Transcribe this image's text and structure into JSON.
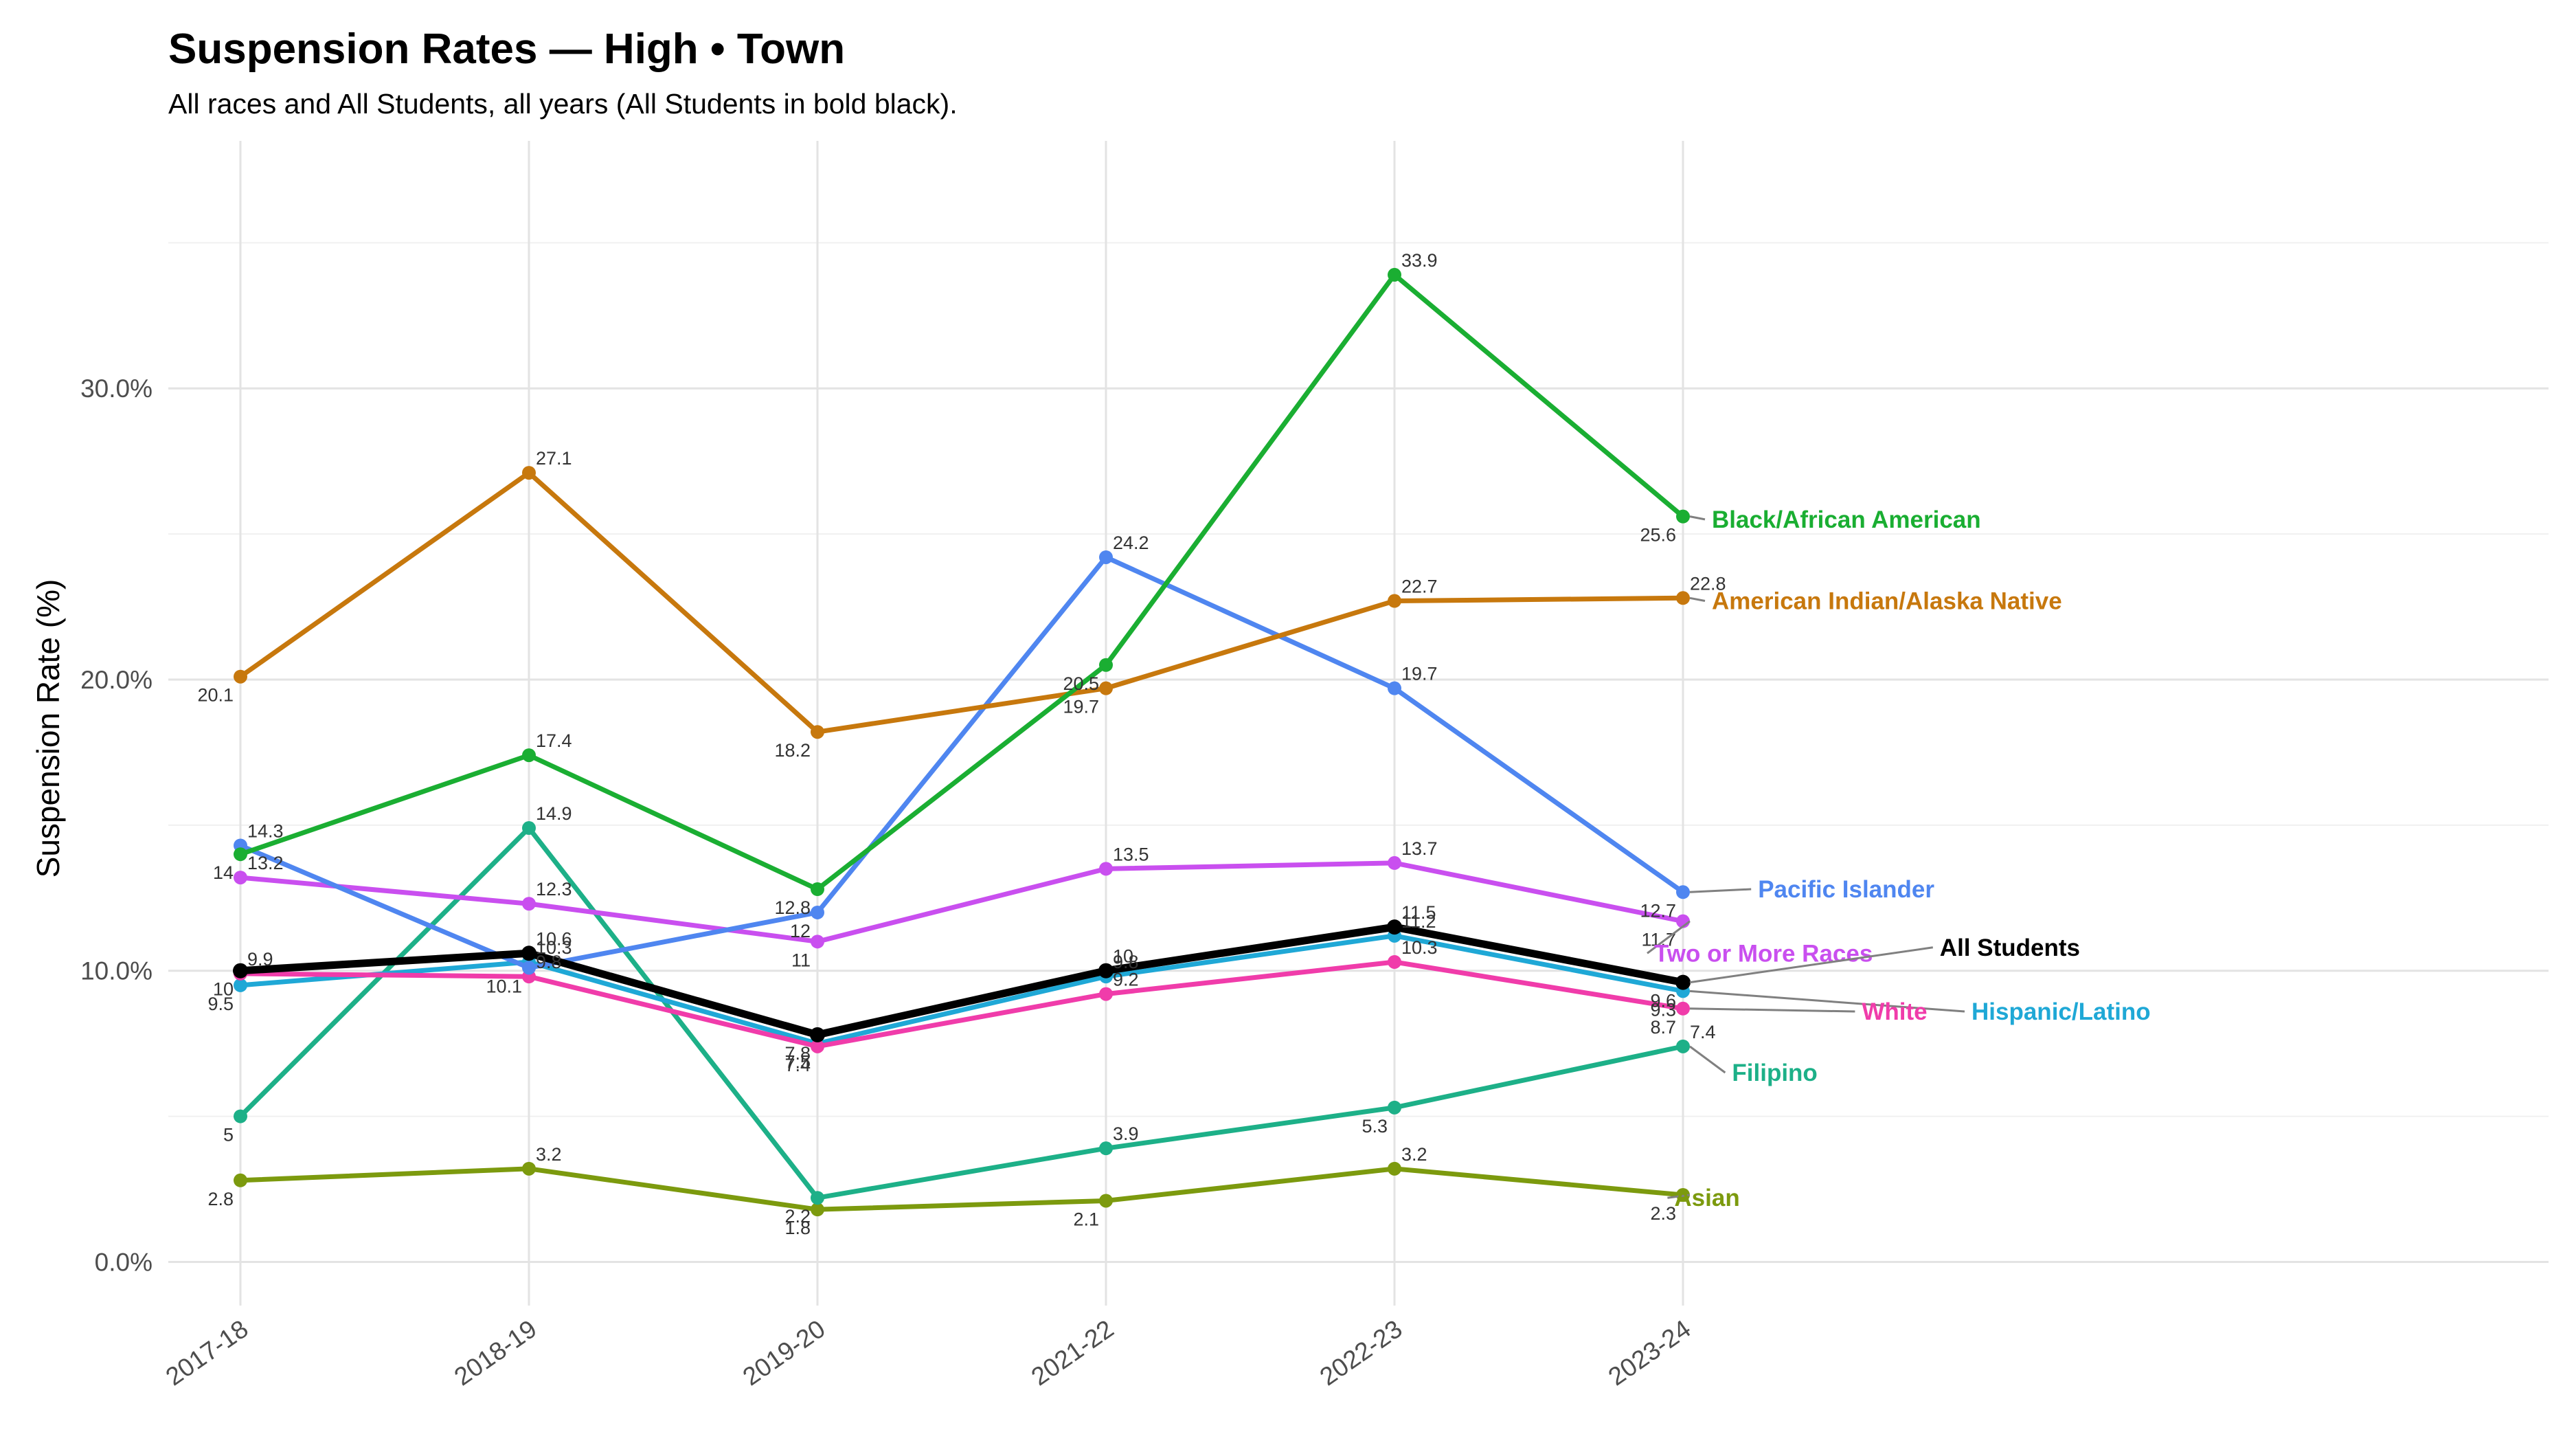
{
  "chart_data": {
    "type": "line",
    "title": "Suspension Rates — High • Town",
    "subtitle": "All races and All Students, all years (All Students in bold black).",
    "xlabel": "",
    "ylabel": "Suspension Rate (%)",
    "categories": [
      "2017-18",
      "2018-19",
      "2019-20",
      "2021-22",
      "2022-23",
      "2023-24"
    ],
    "ylim": [
      -1.5,
      38.5
    ],
    "yticks": [
      0,
      10,
      20,
      30
    ],
    "ytick_labels": [
      "0.0%",
      "10.0%",
      "20.0%",
      "30.0%"
    ],
    "grid": true,
    "legend": "direct labels at line ends",
    "series": [
      {
        "name": "Asian",
        "color": "#7C9A0E",
        "values": [
          2.8,
          3.2,
          1.8,
          2.1,
          3.2,
          2.3
        ],
        "point_labels": [
          "2.8",
          "3.2",
          "1.8",
          "2.1",
          "3.2",
          "2.3"
        ],
        "label_y": 2.2,
        "end_label_x": 4.97
      },
      {
        "name": "Filipino",
        "color": "#1DB088",
        "values": [
          5,
          14.9,
          2.2,
          3.9,
          5.3,
          7.4
        ],
        "point_labels": [
          "5",
          "14.9",
          "2.2",
          "3.9",
          "5.3",
          "7.4"
        ],
        "label_y": 6.5,
        "end_label_x": 5.17
      },
      {
        "name": "Hispanic/Latino",
        "color": "#1FA8D6",
        "values": [
          9.5,
          10.3,
          7.5,
          9.8,
          11.2,
          9.3
        ],
        "point_labels": [
          "9.5",
          "10.3",
          "7.5",
          "9.8",
          "11.2",
          "9.3"
        ],
        "label_y": 8.6,
        "end_label_x": 6.0
      },
      {
        "name": "White",
        "color": "#F03CAA",
        "values": [
          9.9,
          9.8,
          7.4,
          9.2,
          10.3,
          8.7
        ],
        "point_labels": [
          "9.9",
          "9.8",
          "7.4",
          "9.2",
          "10.3",
          "8.7"
        ],
        "label_y": 8.6,
        "end_label_x": 5.62
      },
      {
        "name": "Two or More Races",
        "color": "#C94FEF",
        "values": [
          13.2,
          12.3,
          11,
          13.5,
          13.7,
          11.7
        ],
        "point_labels": [
          "13.2",
          "12.3",
          "11",
          "13.5",
          "13.7",
          "11.7"
        ],
        "label_y": 10.6,
        "end_label_x": 4.9
      },
      {
        "name": "Pacific Islander",
        "color": "#4F86F0",
        "values": [
          14.3,
          10.1,
          12,
          24.2,
          19.7,
          12.7
        ],
        "point_labels": [
          "14.3",
          "10.1",
          "12",
          "24.2",
          "19.7",
          "12.7"
        ],
        "label_y": 12.8,
        "end_label_x": 5.26
      },
      {
        "name": "American Indian/Alaska Native",
        "color": "#C7780D",
        "values": [
          20.1,
          27.1,
          18.2,
          19.7,
          22.7,
          22.8
        ],
        "point_labels": [
          "20.1",
          "27.1",
          "18.2",
          "19.7",
          "22.7",
          "22.8"
        ],
        "label_y": 22.7,
        "end_label_x": 5.1
      },
      {
        "name": "Black/African American",
        "color": "#1AAE32",
        "values": [
          14,
          17.4,
          12.8,
          20.5,
          33.9,
          25.6
        ],
        "point_labels": [
          "14",
          "17.4",
          "12.8",
          "20.5",
          "33.9",
          "25.6"
        ],
        "label_y": 25.5,
        "end_label_x": 5.1
      },
      {
        "name": "All Students",
        "color": "#000000",
        "values": [
          10,
          10.6,
          7.8,
          10,
          11.5,
          9.6
        ],
        "point_labels": [
          "10",
          "10.6",
          "7.8",
          "10",
          "11.5",
          "9.6"
        ],
        "label_y": 10.8,
        "end_label_x": 5.89
      }
    ]
  }
}
